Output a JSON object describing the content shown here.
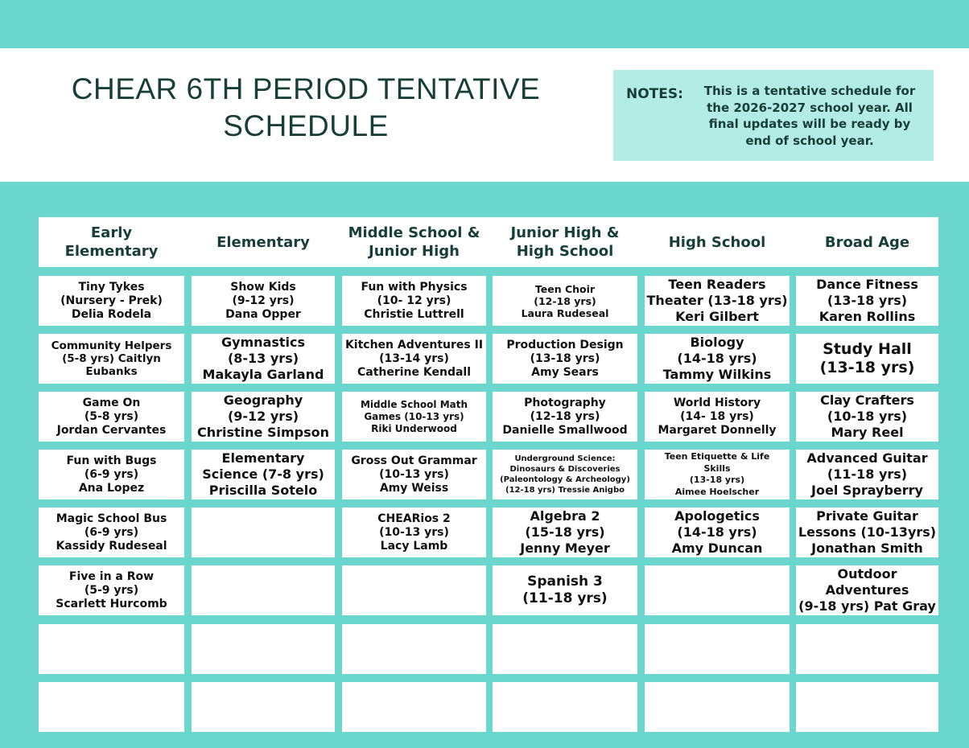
{
  "title": "CHEAR 6TH PERIOD TENTATIVE\nSCHEDULE",
  "notes": {
    "label": "NOTES:",
    "text": "This is a tentative schedule for the 2026-2027 school year. All final updates will be ready by end of school year."
  },
  "colors": {
    "teal": "#6ad6cd",
    "notes_bg": "#b3ebe5",
    "heading": "#173f38"
  },
  "columns": [
    "Early\nElementary",
    "Elementary",
    "Middle School  &\nJunior High",
    "Junior High  &\nHigh School",
    "High School",
    "Broad Age"
  ],
  "rows": [
    [
      "Tiny Tykes\n(Nursery - Prek)\nDelia Rodela",
      "Show Kids\n(9-12 yrs)\nDana Opper",
      "Fun with Physics\n(10- 12 yrs)\nChristie Luttrell",
      "Teen Choir\n(12-18 yrs)\nLaura Rudeseal",
      "Teen Readers\nTheater (13-18 yrs)\nKeri Gilbert",
      "Dance Fitness\n(13-18 yrs)\nKaren Rollins"
    ],
    [
      "Community Helpers\n(5-8 yrs) Caitlyn\nEubanks",
      "Gymnastics\n(8-13 yrs)\nMakayla Garland",
      "Kitchen Adventures II\n(13-14 yrs)\nCatherine Kendall",
      "Production Design\n(13-18 yrs)\nAmy Sears",
      "Biology\n(14-18 yrs)\nTammy Wilkins",
      "Study Hall\n(13-18 yrs)"
    ],
    [
      "Game On\n(5-8 yrs)\nJordan Cervantes",
      "Geography\n(9-12 yrs)\nChristine Simpson",
      "Middle School Math\nGames (10-13 yrs)\nRiki Underwood",
      "Photography\n(12-18 yrs)\nDanielle Smallwood",
      "World History\n(14- 18 yrs)\nMargaret Donnelly",
      "Clay Crafters\n(10-18 yrs)\nMary Reel"
    ],
    [
      "Fun with Bugs\n(6-9 yrs)\nAna Lopez",
      "Elementary\nScience (7-8 yrs)\nPriscilla Sotelo",
      "Gross Out Grammar\n(10-13 yrs)\nAmy Weiss",
      "Underground Science:\nDinosaurs & Discoveries\n(Paleontology & Archeology)\n(12-18 yrs) Tressie Anigbo",
      "Teen Etiquette & Life\nSkills\n(13-18 yrs)\nAimee Hoelscher",
      "Advanced Guitar\n(11-18 yrs)\nJoel Sprayberry"
    ],
    [
      "Magic School Bus\n(6-9 yrs)\nKassidy Rudeseal",
      "",
      "CHEARios 2\n(10-13 yrs)\nLacy Lamb",
      "Algebra 2\n(15-18 yrs)\nJenny Meyer",
      "Apologetics\n(14-18 yrs)\nAmy Duncan",
      "Private Guitar\nLessons (10-13yrs)\nJonathan Smith"
    ],
    [
      "Five in a Row\n(5-9 yrs)\nScarlett Hurcomb",
      "",
      "",
      "Spanish 3\n(11-18 yrs)",
      "",
      "Outdoor\nAdventures\n(9-18 yrs) Pat Gray"
    ],
    [
      "",
      "",
      "",
      "",
      "",
      ""
    ],
    [
      "",
      "",
      "",
      "",
      "",
      ""
    ]
  ]
}
